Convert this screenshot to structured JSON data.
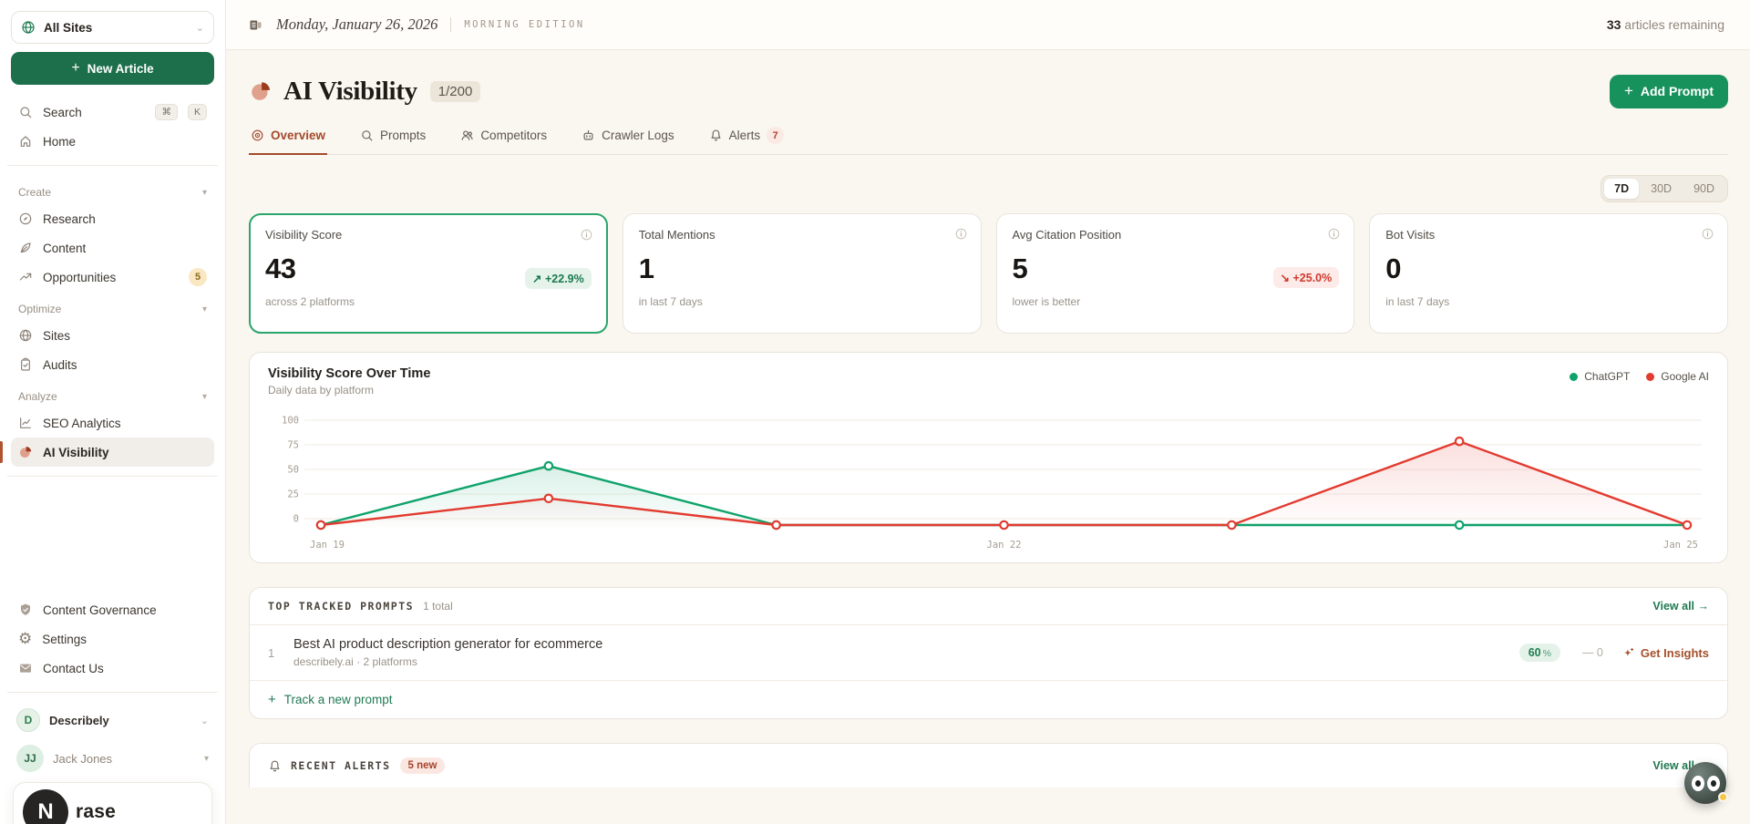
{
  "topbar": {
    "date": "Monday, January 26, 2026",
    "edition": "MORNING EDITION",
    "articles_remaining_count": "33",
    "articles_remaining_label": " articles remaining"
  },
  "sidebar": {
    "site_selector": {
      "label": "All Sites"
    },
    "new_article_button": "New Article",
    "search": {
      "label": "Search",
      "key1": "⌘",
      "key2": "K"
    },
    "home_label": "Home",
    "sections": [
      {
        "label": "Create",
        "items": [
          {
            "label": "Research"
          },
          {
            "label": "Content"
          },
          {
            "label": "Opportunities",
            "badge": "5"
          }
        ]
      },
      {
        "label": "Optimize",
        "items": [
          {
            "label": "Sites"
          },
          {
            "label": "Audits"
          }
        ]
      },
      {
        "label": "Analyze",
        "items": [
          {
            "label": "SEO Analytics"
          },
          {
            "label": "AI Visibility",
            "active": true
          }
        ]
      }
    ],
    "footer_items": [
      {
        "label": "Content Governance"
      },
      {
        "label": "Settings"
      },
      {
        "label": "Contact Us"
      }
    ],
    "workspace": {
      "initial": "D",
      "name": "Describely"
    },
    "user": {
      "initials": "JJ",
      "name": "Jack Jones"
    },
    "brand": {
      "logo_letter": "N",
      "visible_text": "rase"
    }
  },
  "header": {
    "title": "AI Visibility",
    "quota_badge": "1/200",
    "add_prompt_button": "Add Prompt"
  },
  "tabs": [
    {
      "label": "Overview",
      "active": true
    },
    {
      "label": "Prompts"
    },
    {
      "label": "Competitors"
    },
    {
      "label": "Crawler Logs"
    },
    {
      "label": "Alerts",
      "badge": "7"
    }
  ],
  "range_selector": [
    {
      "label": "7D",
      "active": true
    },
    {
      "label": "30D"
    },
    {
      "label": "90D"
    }
  ],
  "stat_cards": [
    {
      "title": "Visibility Score",
      "value": "43",
      "badge": "↗ +22.9%",
      "badge_type": "positive",
      "subtitle": "across 2 platforms",
      "selected": true
    },
    {
      "title": "Total Mentions",
      "value": "1",
      "subtitle": "in last 7 days"
    },
    {
      "title": "Avg Citation Position",
      "value": "5",
      "badge": "↘ +25.0%",
      "badge_type": "negative",
      "subtitle": "lower is better"
    },
    {
      "title": "Bot Visits",
      "value": "0",
      "subtitle": "in last 7 days"
    }
  ],
  "chart_data": {
    "type": "line",
    "title": "Visibility Score Over Time",
    "subtitle": "Daily data by platform",
    "x": [
      "Jan 19",
      "Jan 20",
      "Jan 21",
      "Jan 22",
      "Jan 23",
      "Jan 24",
      "Jan 25"
    ],
    "x_ticks_shown": [
      "Jan 19",
      "Jan 22",
      "Jan 25"
    ],
    "ylim": [
      0,
      100
    ],
    "yticks": [
      0,
      25,
      50,
      75,
      100
    ],
    "grid": true,
    "legend_position": "top-right",
    "series": [
      {
        "name": "ChatGPT",
        "color": "#0fa36b",
        "values": [
          0,
          60,
          0,
          0,
          0,
          0,
          0
        ],
        "marker_indices": [
          0,
          1,
          2,
          5
        ]
      },
      {
        "name": "Google AI",
        "color": "#e23b30",
        "values": [
          0,
          27,
          0,
          0,
          0,
          85,
          0
        ],
        "marker_indices": [
          0,
          1,
          2,
          3,
          4,
          5,
          6
        ]
      }
    ]
  },
  "prompts_card": {
    "header": "TOP TRACKED PROMPTS",
    "total": "1 total",
    "view_all": "View all →",
    "rows": [
      {
        "rank": "1",
        "title": "Best AI product description generator for ecommerce",
        "subtitle": "describely.ai · 2 platforms",
        "score": "60",
        "score_unit": "%",
        "trend": "— 0",
        "action": "Get Insights"
      }
    ],
    "track_new": "Track a new prompt"
  },
  "alerts_card": {
    "header": "RECENT ALERTS",
    "badge": "5 new",
    "view_all": "View all →"
  },
  "colors": {
    "brand_green": "#1d6f4b",
    "accent_green": "#17925c",
    "link_green": "#1f7a52",
    "rust": "#a44a2b"
  }
}
